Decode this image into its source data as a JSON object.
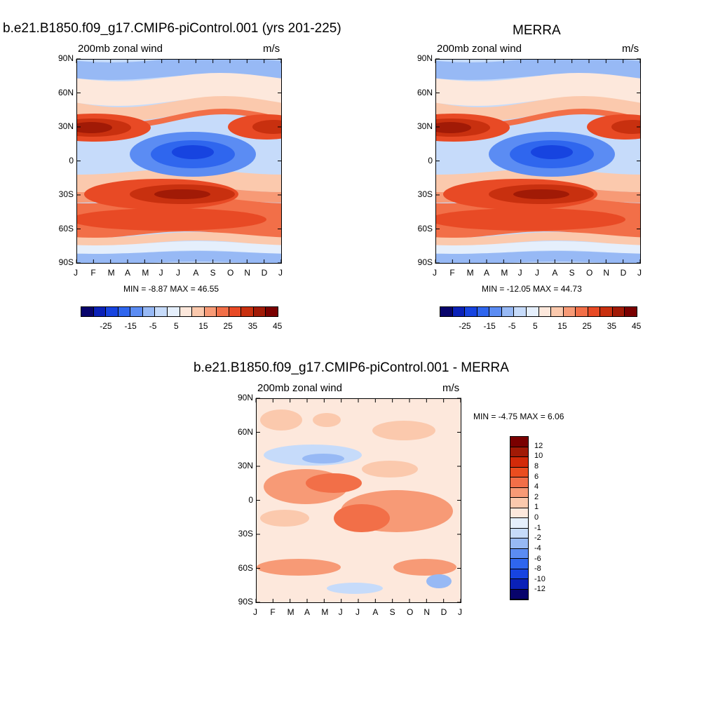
{
  "chart_data": [
    {
      "id": "panel-model",
      "type": "heatmap",
      "title": "b.e21.B1850.f09_g17.CMIP6-piControl.001 (yrs 201-225)",
      "subtitle_left": "200mb zonal wind",
      "subtitle_right": "m/s",
      "stats": "MIN =  -8.87 MAX =  46.55",
      "x_tick_labels": [
        "J",
        "F",
        "M",
        "A",
        "M",
        "J",
        "J",
        "A",
        "S",
        "O",
        "N",
        "D",
        "J"
      ],
      "y_tick_labels": [
        "90N",
        "60N",
        "30N",
        "0",
        "30S",
        "60S",
        "90S"
      ],
      "y_tick_values": [
        90,
        60,
        30,
        0,
        -30,
        -60,
        -90
      ],
      "ylim": [
        -90,
        90
      ],
      "colorbar_labels": [
        "-25",
        "-15",
        "-5",
        "5",
        "15",
        "25",
        "35",
        "45"
      ],
      "contour_levels": [
        -30,
        -25,
        -20,
        -15,
        -10,
        -5,
        0,
        5,
        10,
        15,
        20,
        25,
        30,
        35,
        40,
        45
      ],
      "features": {
        "nh_jet": {
          "lat": 30,
          "peak_months": [
            "J",
            "F",
            "D"
          ],
          "max": 46.55
        },
        "sh_jet": {
          "lat": -30,
          "peak_months": [
            "J",
            "A"
          ],
          "max": 45
        },
        "tropical_easterlies": {
          "lat": 8,
          "peak_months": [
            "J",
            "A"
          ],
          "min": -8.87
        }
      }
    },
    {
      "id": "panel-merra",
      "type": "heatmap",
      "title": "MERRA",
      "subtitle_left": "200mb zonal wind",
      "subtitle_right": "m/s",
      "stats": "MIN = -12.05 MAX =  44.73",
      "x_tick_labels": [
        "J",
        "F",
        "M",
        "A",
        "M",
        "J",
        "J",
        "A",
        "S",
        "O",
        "N",
        "D",
        "J"
      ],
      "y_tick_labels": [
        "90N",
        "60N",
        "30N",
        "0",
        "30S",
        "60S",
        "90S"
      ],
      "y_tick_values": [
        90,
        60,
        30,
        0,
        -30,
        -60,
        -90
      ],
      "ylim": [
        -90,
        90
      ],
      "colorbar_labels": [
        "-25",
        "-15",
        "-5",
        "5",
        "15",
        "25",
        "35",
        "45"
      ],
      "contour_levels": [
        -30,
        -25,
        -20,
        -15,
        -10,
        -5,
        0,
        5,
        10,
        15,
        20,
        25,
        30,
        35,
        40,
        45
      ],
      "features": {
        "nh_jet": {
          "lat": 30,
          "peak_months": [
            "J",
            "F",
            "D"
          ],
          "max": 44.73
        },
        "sh_jet": {
          "lat": -30,
          "peak_months": [
            "J",
            "A"
          ],
          "max": 42
        },
        "tropical_easterlies": {
          "lat": 8,
          "peak_months": [
            "J",
            "A"
          ],
          "min": -12.05
        }
      }
    },
    {
      "id": "panel-diff",
      "type": "heatmap",
      "title": "b.e21.B1850.f09_g17.CMIP6-piControl.001 - MERRA",
      "subtitle_left": "200mb zonal wind",
      "subtitle_right": "m/s",
      "stats": "MIN =  -4.75 MAX =   6.06",
      "x_tick_labels": [
        "J",
        "F",
        "M",
        "A",
        "M",
        "J",
        "J",
        "A",
        "S",
        "O",
        "N",
        "D",
        "J"
      ],
      "y_tick_labels": [
        "90N",
        "60N",
        "30N",
        "0",
        "30S",
        "60S",
        "90S"
      ],
      "y_tick_values": [
        90,
        60,
        30,
        0,
        -30,
        -60,
        -90
      ],
      "ylim": [
        -90,
        90
      ],
      "colorbar_labels": [
        "12",
        "10",
        "8",
        "6",
        "4",
        "2",
        "1",
        "0",
        "-1",
        "-2",
        "-4",
        "-6",
        "-8",
        "-10",
        "-12"
      ],
      "contour_levels": [
        12,
        10,
        8,
        6,
        4,
        2,
        1,
        0,
        -1,
        -2,
        -4,
        -6,
        -8,
        -10,
        -12
      ]
    }
  ],
  "colors": {
    "main_palette": [
      "#08046b",
      "#0a21b8",
      "#1744e0",
      "#2f66ee",
      "#5b8cf3",
      "#97b9f5",
      "#c6dbfa",
      "#e5effc",
      "#fde8dc",
      "#fbc9ad",
      "#f79a76",
      "#f26f48",
      "#e84a25",
      "#c8300f",
      "#a11a06",
      "#7a0000"
    ],
    "diff_palette": [
      "#7a0000",
      "#a11a06",
      "#d22a09",
      "#ea4d1f",
      "#f26f48",
      "#f79a76",
      "#fbc9ad",
      "#fde8dc",
      "#e5effc",
      "#c6dbfa",
      "#97b9f5",
      "#5b8cf3",
      "#2f66ee",
      "#1744e0",
      "#0a21b8",
      "#08046b"
    ]
  }
}
